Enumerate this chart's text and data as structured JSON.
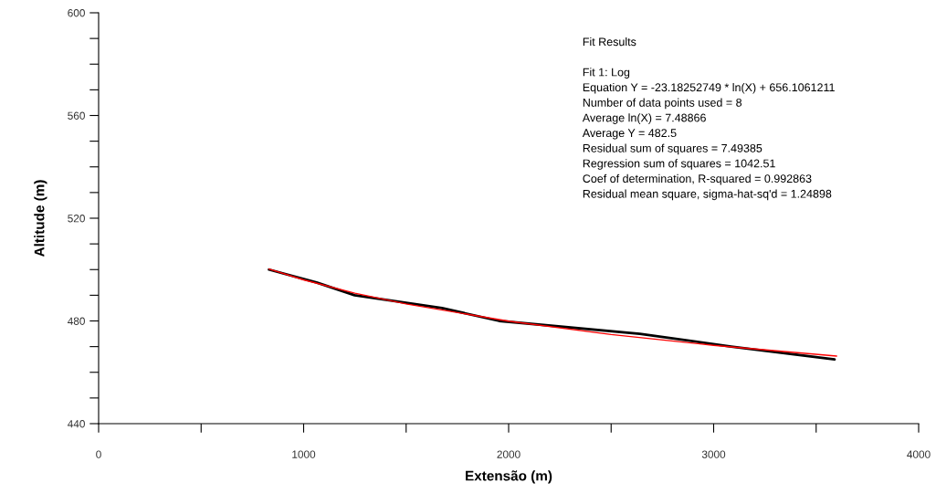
{
  "chart_data": {
    "type": "line",
    "xlabel": "Extensão (m)",
    "ylabel": "Altitude (m)",
    "annotations": [
      "Fit Results",
      "Fit 1: Log",
      "Equation Y = -23.18252749 * ln(X) + 656.1061211",
      "Number of data points used = 8",
      "Average ln(X) = 7.48866",
      "Average Y = 482.5",
      "Residual sum of squares = 7.49385",
      "Regression sum of squares = 1042.51",
      "Coef of determination, R-squared = 0.992863",
      "Residual mean square, sigma-hat-sq'd = 1.24898"
    ],
    "series": [
      {
        "color": "#000000",
        "x": [
          831,
          1063,
          1249,
          1675,
          1954,
          2640,
          3086,
          3590
        ],
        "values": [
          500,
          495,
          490,
          485,
          480,
          475,
          470,
          465
        ]
      },
      {
        "color": "#ff0000",
        "type": "line",
        "x": [
          831,
          1000,
          1250,
          1500,
          2000,
          2500,
          3000,
          3600
        ],
        "values": [
          500.2,
          496,
          490.8,
          486.6,
          479.9,
          474.7,
          470.5,
          466.3
        ]
      }
    ],
    "xlim": [
      0,
      4000
    ],
    "xticks": [
      0,
      {
        "value": 500,
        "label": null
      },
      1000,
      {
        "value": 1500,
        "label": null
      },
      2000,
      {
        "value": 2500,
        "label": null
      },
      3000,
      {
        "value": 3500,
        "label": null
      },
      4000
    ],
    "ylim": [
      440,
      600
    ],
    "yticks": [
      440,
      {
        "value": 450,
        "label": null
      },
      {
        "value": 460,
        "label": null
      },
      {
        "value": 470,
        "label": null
      },
      480,
      {
        "value": 490,
        "label": null
      },
      {
        "value": 500,
        "label": null
      },
      {
        "value": 510,
        "label": null
      },
      520,
      {
        "value": 530,
        "label": null
      },
      {
        "value": 540,
        "label": null
      },
      {
        "value": 550,
        "label": null
      },
      560,
      {
        "value": 570,
        "label": null
      },
      {
        "value": 580,
        "label": null
      },
      {
        "value": 590,
        "label": null
      },
      600
    ],
    "grid": false,
    "legend": false,
    "marker": "none",
    "line_style": "solid"
  }
}
